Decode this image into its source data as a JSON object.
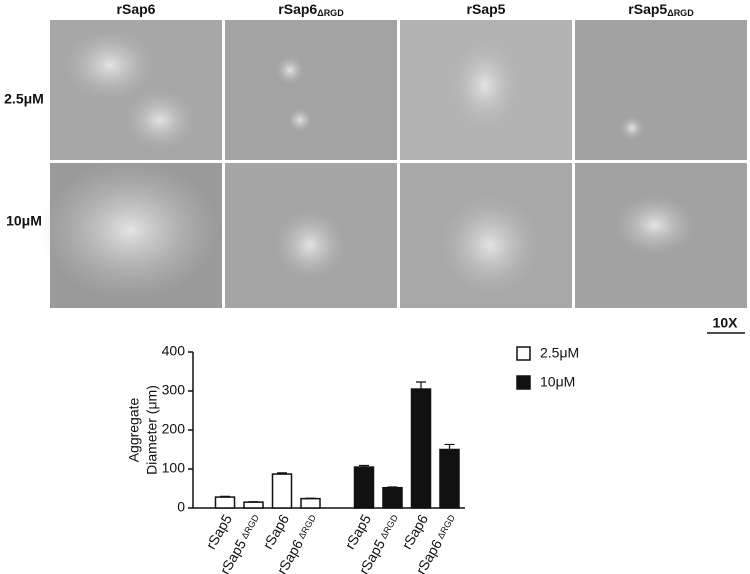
{
  "panels": {
    "columns": [
      {
        "name": "rSap6"
      },
      {
        "name": "rSap6",
        "sub": "ΔRGD"
      },
      {
        "name": "rSap5"
      },
      {
        "name": "rSap5",
        "sub": "ΔRGD"
      }
    ],
    "rows": [
      "2.5μM",
      "10μM"
    ],
    "scale": "10X"
  },
  "chart_data": {
    "type": "bar",
    "y_label": [
      "Aggregate",
      "Diameter (μm)"
    ],
    "categories": [
      {
        "name": "rSap5"
      },
      {
        "name": "rSap5",
        "sub": "ΔRGD"
      },
      {
        "name": "rSap6"
      },
      {
        "name": "rSap6",
        "sub": "ΔRGD"
      }
    ],
    "series": [
      {
        "name": "2.5μM",
        "color": "#ffffff",
        "values": [
          28,
          15,
          87,
          24
        ],
        "errors": [
          2,
          1,
          3,
          1
        ]
      },
      {
        "name": "10μM",
        "color": "#111111",
        "values": [
          105,
          52,
          305,
          150
        ],
        "errors": [
          4,
          2,
          18,
          13
        ]
      }
    ],
    "ylim": [
      0,
      400
    ],
    "yticks": [
      0,
      100,
      200,
      300,
      400
    ],
    "legend": "top-right"
  }
}
